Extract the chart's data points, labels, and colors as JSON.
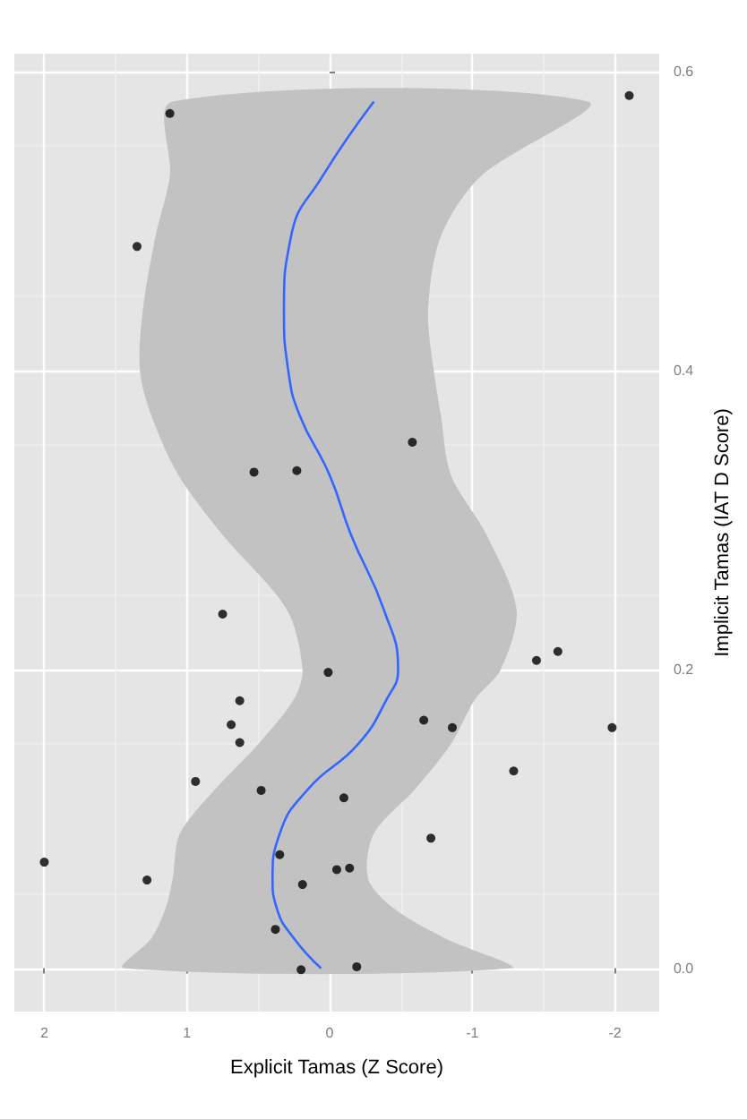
{
  "chart_data": {
    "type": "scatter",
    "xlabel": "Explicit Tamas (Z Score)",
    "ylabel": "Implicit Tamas (IAT D Score)",
    "xlim": [
      2.21,
      -2.31
    ],
    "ylim": [
      -0.029,
      0.612
    ],
    "xticks": [
      -2,
      -1,
      0,
      1,
      2
    ],
    "yticks": [
      {
        "value": 0,
        "label": "0.0"
      },
      {
        "value": 0.2,
        "label": "0.2"
      },
      {
        "value": 0.4,
        "label": "0.4"
      },
      {
        "value": 0.6,
        "label": "0.6"
      }
    ],
    "grid": true,
    "series": [
      {
        "type": "area",
        "color": "#c2c2c2",
        "x": [
          1.44,
          1.25,
          1.15,
          1.1,
          1.05,
          0.8,
          0.5,
          0.25,
          0.19,
          0.3,
          0.75,
          1.06,
          1.25,
          1.33,
          1.31,
          1.22,
          1.12,
          1.1,
          -1.81,
          -1.06,
          -0.78,
          -0.69,
          -0.73,
          -0.78,
          -0.85,
          -1.1,
          -1.31,
          -1.2,
          -1.02,
          -0.85,
          -0.6,
          -0.31,
          -0.27,
          -0.45,
          -0.81,
          -1.27
        ],
        "values": [
          0,
          0.02,
          0.04,
          0.06,
          0.09,
          0.12,
          0.15,
          0.18,
          0.2,
          0.24,
          0.29,
          0.33,
          0.37,
          0.4,
          0.44,
          0.49,
          0.53,
          0.58,
          0.58,
          0.53,
          0.49,
          0.44,
          0.4,
          0.37,
          0.33,
          0.29,
          0.24,
          0.2,
          0.18,
          0.15,
          0.12,
          0.09,
          0.06,
          0.04,
          0.02,
          0
        ]
      },
      {
        "color": "#000000",
        "marker": "circle",
        "x": [
          1.12,
          1.35,
          0.53,
          0.23,
          -2.1,
          -0.58,
          0.75,
          0.01,
          0.63,
          0.69,
          0.63,
          0.94,
          0.48,
          -0.1,
          2.0,
          0.35,
          1.28,
          -0.05,
          -0.14,
          0.19,
          0.38,
          0.2,
          -0.19,
          -1.6,
          -1.45,
          -0.66,
          -0.86,
          -1.98,
          -1.29,
          -0.71
        ],
        "values": [
          0.572,
          0.483,
          0.332,
          0.333,
          0.584,
          0.352,
          0.237,
          0.198,
          0.179,
          0.163,
          0.151,
          0.125,
          0.119,
          0.114,
          0.071,
          0.076,
          0.059,
          0.066,
          0.067,
          0.056,
          0.026,
          -0.001,
          0.001,
          0.212,
          0.206,
          0.166,
          0.161,
          0.161,
          0.132,
          0.087
        ]
      },
      {
        "type": "line",
        "color": "#3366ff",
        "marker": "none",
        "line_style": "solid",
        "x": [
          0.06,
          0.25,
          0.37,
          0.4,
          0.35,
          0.15,
          -0.2,
          -0.4,
          -0.48,
          -0.38,
          -0.15,
          0.0,
          0.21,
          0.29,
          0.32,
          0.27,
          0.05,
          -0.31
        ],
        "values": [
          0,
          0.02,
          0.04,
          0.06,
          0.09,
          0.12,
          0.15,
          0.18,
          0.2,
          0.24,
          0.29,
          0.33,
          0.37,
          0.4,
          0.44,
          0.49,
          0.53,
          0.58
        ]
      }
    ]
  }
}
